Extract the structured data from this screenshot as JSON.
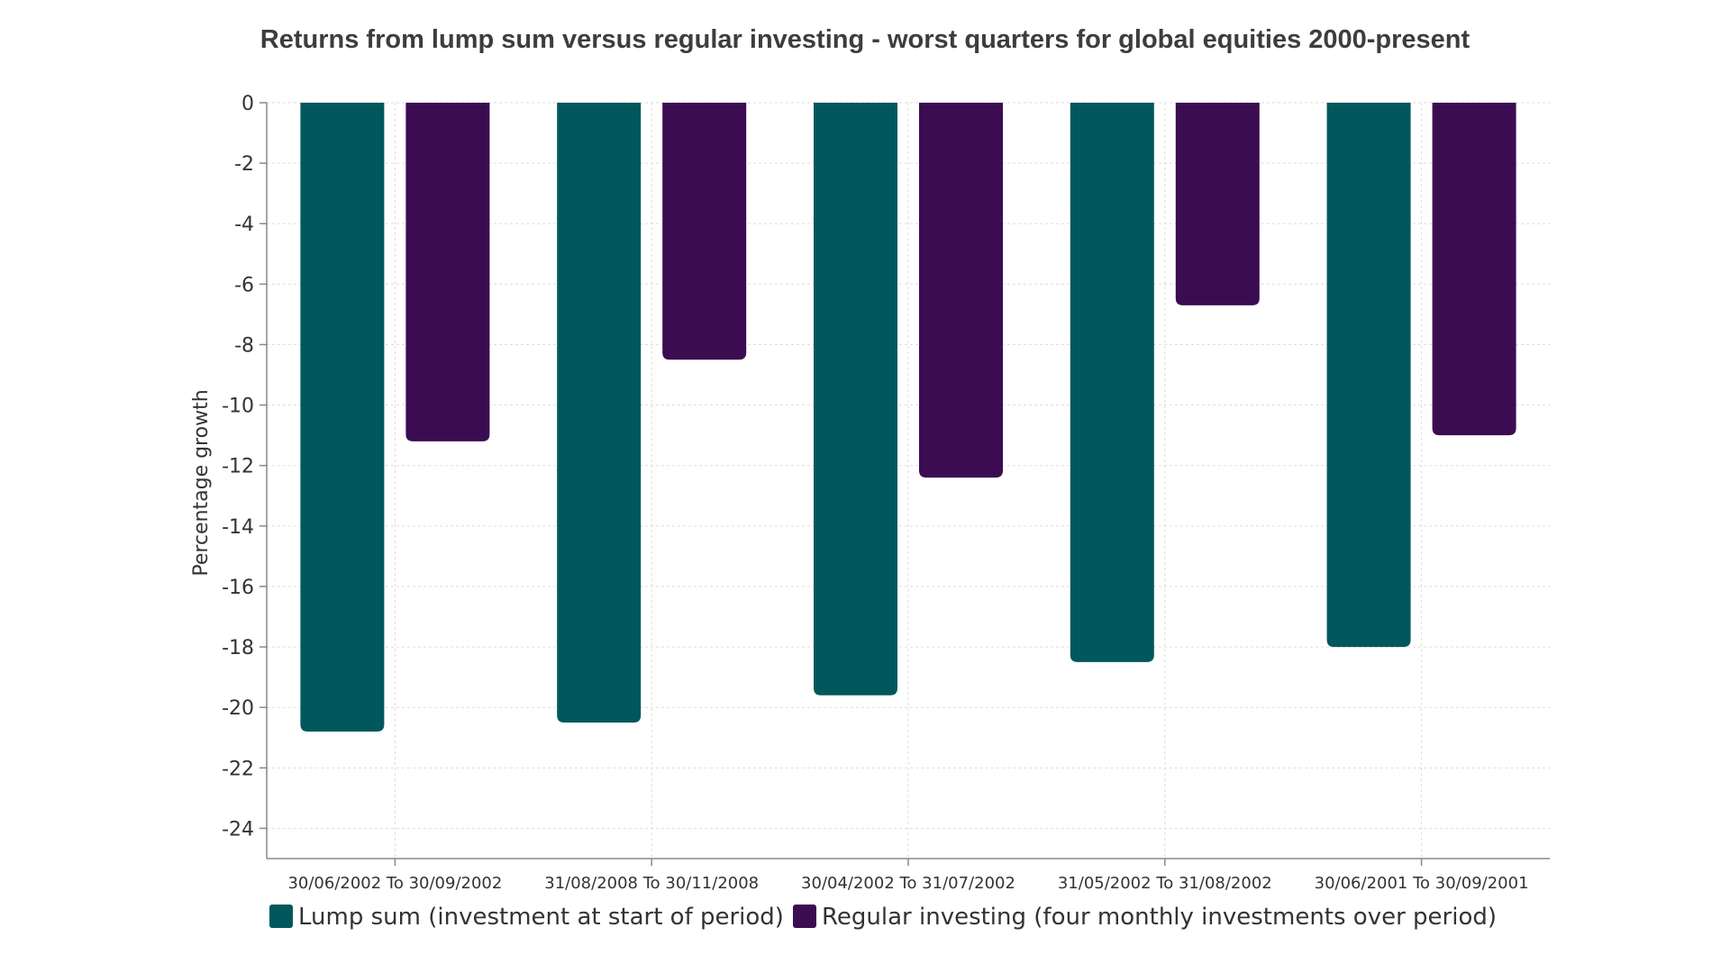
{
  "chart_data": {
    "type": "bar",
    "title": "Returns from lump sum versus regular investing - worst quarters for global equities 2000-present",
    "xlabel": "",
    "ylabel": "Percentage growth",
    "ylim": [
      -25,
      0
    ],
    "yticks": [
      0,
      -2,
      -4,
      -6,
      -8,
      -10,
      -12,
      -14,
      -16,
      -18,
      -20,
      -22,
      -24
    ],
    "grid": true,
    "legend_position": "bottom",
    "categories": [
      "30/06/2002 To 30/09/2002",
      "31/08/2008 To 30/11/2008",
      "30/04/2002 To 31/07/2002",
      "31/05/2002 To 31/08/2002",
      "30/06/2001 To 30/09/2001"
    ],
    "series": [
      {
        "name": "Lump sum (investment at start of period)",
        "color": "#00585c",
        "values": [
          -20.8,
          -20.5,
          -19.6,
          -18.5,
          -18.0
        ]
      },
      {
        "name": "Regular investing (four monthly investments over period)",
        "color": "#3b0c52",
        "values": [
          -11.2,
          -8.5,
          -12.4,
          -6.7,
          -11.0
        ]
      }
    ]
  }
}
